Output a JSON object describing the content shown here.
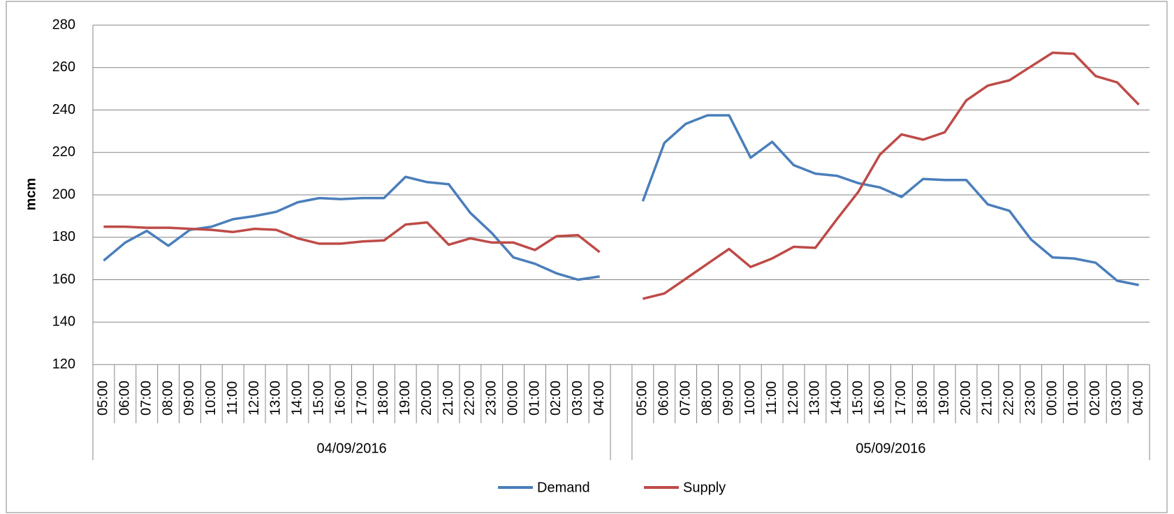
{
  "chart_data": {
    "type": "line",
    "y_label": "mcm",
    "categories": [
      "05:00",
      "06:00",
      "07:00",
      "08:00",
      "09:00",
      "10:00",
      "11:00",
      "12:00",
      "13:00",
      "14:00",
      "15:00",
      "16:00",
      "17:00",
      "18:00",
      "19:00",
      "20:00",
      "21:00",
      "22:00",
      "23:00",
      "00:00",
      "01:00",
      "02:00",
      "03:00",
      "04:00",
      null,
      "05:00",
      "06:00",
      "07:00",
      "08:00",
      "09:00",
      "10:00",
      "11:00",
      "12:00",
      "13:00",
      "14:00",
      "15:00",
      "16:00",
      "17:00",
      "18:00",
      "19:00",
      "20:00",
      "21:00",
      "22:00",
      "23:00",
      "00:00",
      "01:00",
      "02:00",
      "03:00",
      "04:00"
    ],
    "groups": [
      "04/09/2016",
      "05/09/2016"
    ],
    "series": [
      {
        "name": "Demand",
        "color": "#4a7ebb",
        "values": [
          169,
          177.5,
          183,
          176,
          183.5,
          185,
          188.5,
          190,
          192,
          196.5,
          198.5,
          198,
          198.5,
          198.5,
          208.5,
          206,
          205,
          191.5,
          182,
          170.5,
          167.5,
          163,
          160,
          161.5,
          null,
          197,
          224.5,
          233.5,
          237.5,
          237.5,
          217.5,
          225,
          214,
          210,
          209,
          205.5,
          203.5,
          199,
          207.5,
          207,
          207,
          195.5,
          192.5,
          179,
          170.5,
          170,
          168,
          159.5,
          157.5
        ]
      },
      {
        "name": "Supply",
        "color": "#be4b48",
        "values": [
          185,
          185,
          184.5,
          184.5,
          184,
          183.5,
          182.5,
          184,
          183.5,
          179.5,
          177,
          177,
          178,
          178.5,
          186,
          187,
          176.5,
          179.5,
          177.5,
          177.5,
          174,
          180.5,
          181,
          173,
          null,
          151,
          153.5,
          160.5,
          167.5,
          174.5,
          166,
          170,
          175.5,
          175,
          188.5,
          201.5,
          219,
          228.5,
          226,
          229.5,
          244.5,
          251.5,
          254,
          260.5,
          267,
          266.5,
          256,
          253,
          242.5
        ]
      }
    ],
    "ylim": [
      120,
      280
    ],
    "yticks": [
      120,
      140,
      160,
      180,
      200,
      220,
      240,
      260,
      280
    ],
    "grid": true,
    "legend": "bottom"
  }
}
